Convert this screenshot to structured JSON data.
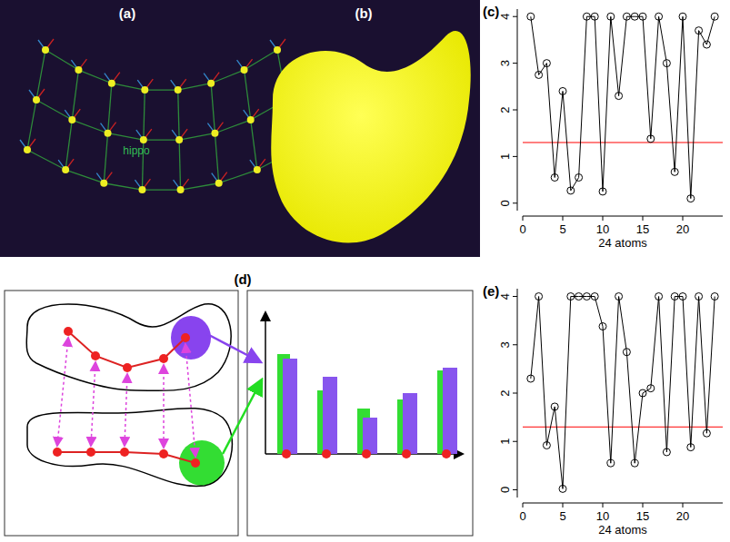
{
  "panels": [
    {
      "label": "(a)",
      "text": "hippo"
    },
    {
      "label": "(b)"
    },
    {
      "label": "(d)"
    }
  ],
  "chart_data": [
    {
      "type": "line",
      "title": "(c)",
      "x_label": "24 atoms",
      "x": [
        1,
        2,
        3,
        4,
        5,
        6,
        7,
        8,
        9,
        10,
        11,
        12,
        13,
        14,
        15,
        16,
        17,
        18,
        19,
        20,
        21,
        22,
        23,
        24
      ],
      "values": [
        4.0,
        2.75,
        3.0,
        0.55,
        2.4,
        0.27,
        0.55,
        4.0,
        4.0,
        0.25,
        4.0,
        2.3,
        4.0,
        4.0,
        4.0,
        1.38,
        4.0,
        3.0,
        0.67,
        4.0,
        0.1,
        3.7,
        3.4,
        4.0
      ],
      "xlim": [
        0,
        25
      ],
      "ylim": [
        -0.16,
        4.16
      ],
      "xticks": [
        0,
        5,
        10,
        15,
        20
      ],
      "yticks": [
        0,
        1,
        2,
        3,
        4
      ],
      "color": "#000000",
      "marker": "circle",
      "reference_line": {
        "value": 1.3,
        "color": "#ff0000"
      }
    },
    {
      "type": "line",
      "title": "(e)",
      "x_label": "24 atoms",
      "x": [
        1,
        2,
        3,
        4,
        5,
        6,
        7,
        8,
        9,
        10,
        11,
        12,
        13,
        14,
        15,
        16,
        17,
        18,
        19,
        20,
        21,
        22,
        23,
        24
      ],
      "values": [
        2.3,
        4.0,
        0.92,
        1.72,
        0.02,
        4.0,
        4.0,
        4.0,
        4.0,
        3.38,
        0.55,
        4.0,
        2.85,
        0.55,
        2.0,
        2.1,
        4.0,
        0.78,
        4.0,
        4.0,
        0.88,
        4.0,
        1.17,
        4.0
      ],
      "xlim": [
        0,
        25
      ],
      "ylim": [
        -0.16,
        4.16
      ],
      "xticks": [
        0,
        5,
        10,
        15,
        20
      ],
      "yticks": [
        0,
        1,
        2,
        3,
        4
      ],
      "color": "#000000",
      "marker": "circle",
      "reference_line": {
        "value": 1.3,
        "color": "#ff0000"
      }
    }
  ]
}
